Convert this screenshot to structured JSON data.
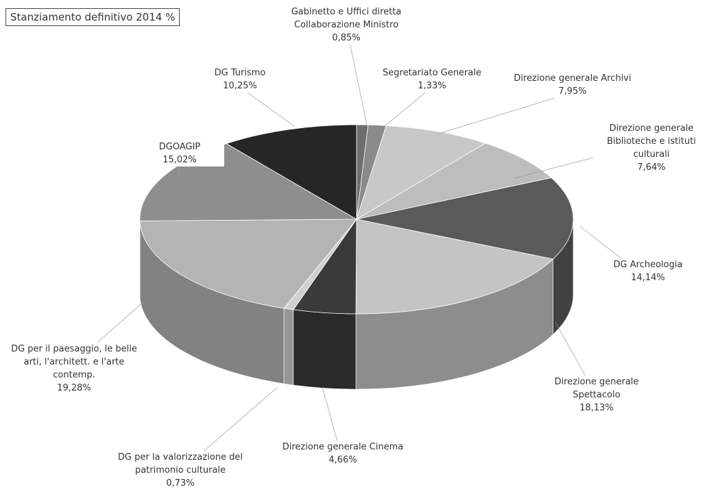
{
  "chart_data": {
    "type": "pie",
    "title": "Stanziamento definitivo 2014 %",
    "categories": [
      "Gabinetto e Uffici diretta Collaborazione Ministro",
      "Segretariato Generale",
      "Direzione generale Archivi",
      "Direzione generale Biblioteche e istituti culturali",
      "DG Archeologia",
      "Direzione generale Spettacolo",
      "Direzione generale Cinema",
      "DG per la valorizzazione del patrimonio culturale",
      "DG per il paesaggio, le belle arti, l'architett. e l'arte contemp.",
      "DGOAGIP",
      "DG Turismo"
    ],
    "values": [
      0.85,
      1.33,
      7.95,
      7.64,
      14.14,
      18.13,
      4.66,
      0.73,
      19.28,
      15.02,
      10.25
    ],
    "value_labels": [
      "0,85%",
      "1,33%",
      "7,95%",
      "7,64%",
      "14,14%",
      "18,13%",
      "4,66%",
      "0,73%",
      "19,28%",
      "15,02%",
      "10,25%"
    ],
    "colors": [
      "#6e6e6e",
      "#8a8a8a",
      "#c8c8c8",
      "#bdbdbd",
      "#5a5a5a",
      "#c4c4c4",
      "#3a3a3a",
      "#d0d0d0",
      "#b4b4b4",
      "#8e8e8e",
      "#262626"
    ]
  }
}
